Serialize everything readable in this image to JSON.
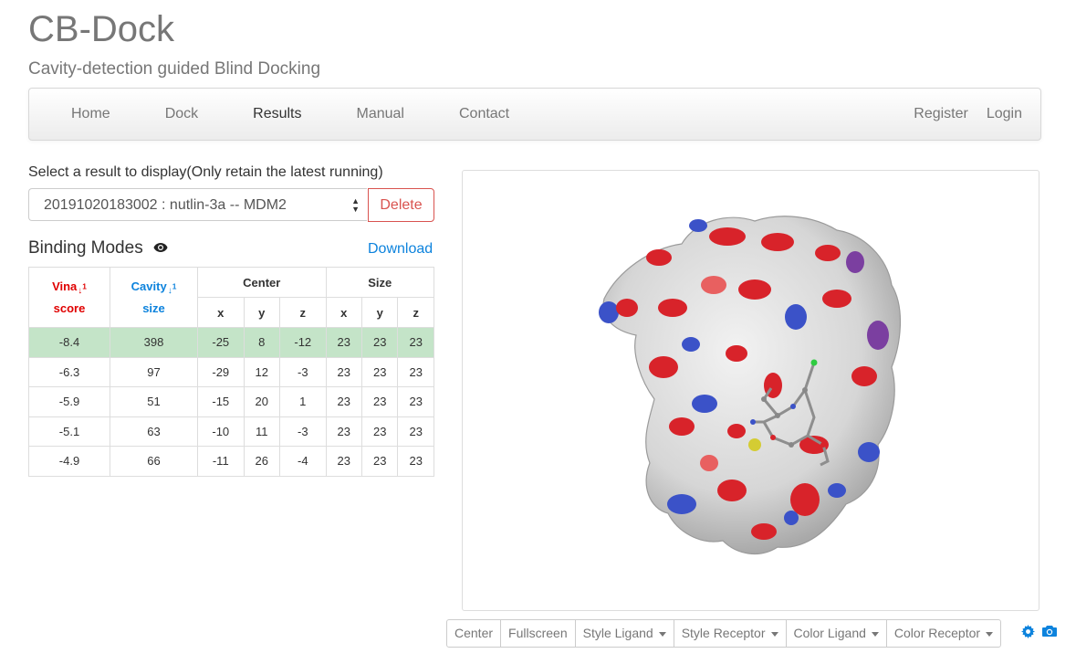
{
  "site": {
    "title": "CB-Dock",
    "subtitle": "Cavity-detection guided Blind Docking"
  },
  "nav": {
    "left": [
      "Home",
      "Dock",
      "Results",
      "Manual",
      "Contact"
    ],
    "active": "Results",
    "right": [
      "Register",
      "Login"
    ]
  },
  "results": {
    "select_label": "Select a result to display(Only retain the latest running)",
    "selected_value": "20191020183002 : nutlin-3a -- MDM2",
    "delete_label": "Delete"
  },
  "binding_modes": {
    "title": "Binding Modes",
    "download_label": "Download",
    "headers": {
      "vina_line1": "Vina",
      "vina_line2": "score",
      "cavity_line1": "Cavity",
      "cavity_line2": "size",
      "center": "Center",
      "size": "Size",
      "axes": [
        "x",
        "y",
        "z",
        "x",
        "y",
        "z"
      ]
    },
    "rows": [
      [
        "-8.4",
        "398",
        "-25",
        "8",
        "-12",
        "23",
        "23",
        "23"
      ],
      [
        "-6.3",
        "97",
        "-29",
        "12",
        "-3",
        "23",
        "23",
        "23"
      ],
      [
        "-5.9",
        "51",
        "-15",
        "20",
        "1",
        "23",
        "23",
        "23"
      ],
      [
        "-5.1",
        "63",
        "-10",
        "11",
        "-3",
        "23",
        "23",
        "23"
      ],
      [
        "-4.9",
        "66",
        "-11",
        "26",
        "-4",
        "23",
        "23",
        "23"
      ]
    ],
    "highlighted_row": 0
  },
  "viewer_toolbar": {
    "buttons": [
      "Center",
      "Fullscreen",
      "Style Ligand",
      "Style Receptor",
      "Color Ligand",
      "Color Receptor"
    ],
    "icons": [
      "gear-icon",
      "camera-icon"
    ]
  },
  "colors": {
    "accent_blue": "#0d83dd",
    "delete_red": "#d9534f",
    "highlight_green": "#c4e4c8",
    "vina_red": "#e00000"
  }
}
